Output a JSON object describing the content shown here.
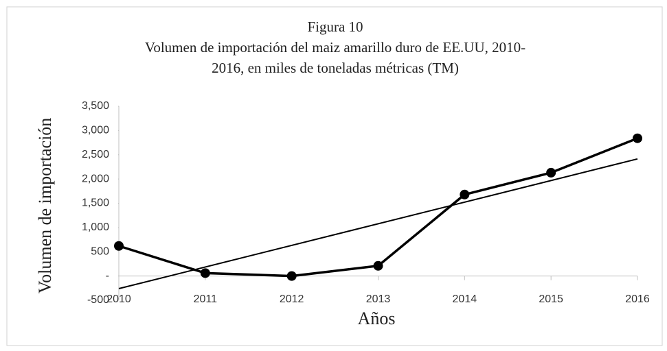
{
  "chart_data": {
    "type": "line",
    "title": "Figura 10",
    "subtitle": [
      "Volumen de importación del maiz amarillo duro de EE.UU, 2010-",
      "2016, en miles de toneladas métricas (TM)"
    ],
    "x_label": "Años",
    "y_label": "Volumen de importación",
    "categories": [
      "2010",
      "2011",
      "2012",
      "2013",
      "2014",
      "2015",
      "2016"
    ],
    "series": [
      {
        "color": "#000000",
        "values": [
          620,
          60,
          0,
          210,
          1680,
          2130,
          2840
        ]
      }
    ],
    "trendline": true,
    "ylim": [
      -500,
      3500
    ],
    "yticks": [
      -500,
      500,
      {
        "value": 0,
        "label": "-"
      },
      {
        "value": 1000,
        "label": "1,000"
      },
      {
        "value": 1500,
        "label": "1,500"
      },
      {
        "value": 2000,
        "label": "2,000"
      },
      {
        "value": 2500,
        "label": "2,500"
      },
      {
        "value": 3000,
        "label": "3,000"
      },
      {
        "value": 3500,
        "label": "3,500"
      }
    ],
    "grid": false
  }
}
